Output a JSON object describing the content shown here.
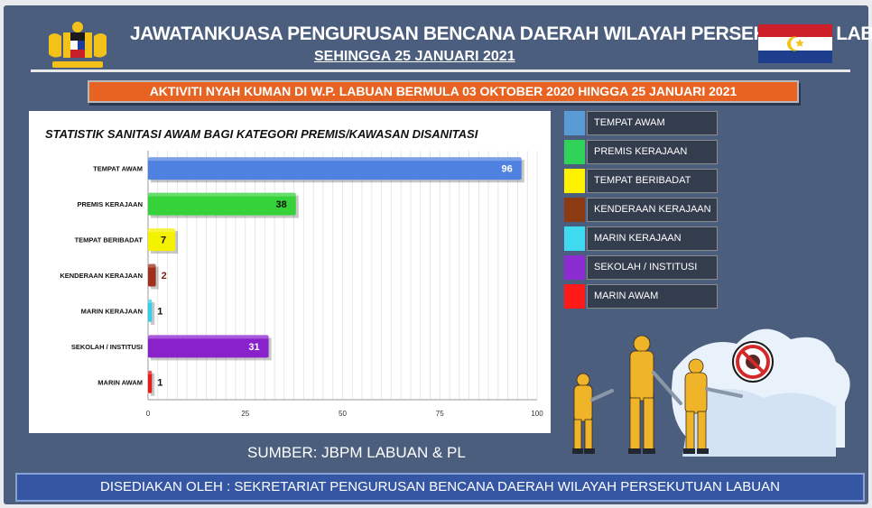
{
  "header": {
    "title": "JAWATANKUASA PENGURUSAN BENCANA DAERAH WILAYAH PERSEKUTUAN  LABUAN",
    "subtitle": "SEHINGGA 25 JANUARI 2021"
  },
  "banner": "AKTIVITI NYAH KUMAN DI W.P. LABUAN BERMULA 03 OKTOBER 2020 HINGGA 25 JANUARI 2021",
  "source": "SUMBER: JBPM LABUAN & PL",
  "footer": "DISEDIAKAN OLEH : SEKRETARIAT PENGURUSAN BENCANA DAERAH WILAYAH PERSEKUTUAN LABUAN",
  "colors": {
    "panel": "#4b5e7e",
    "banner": "#e86321",
    "footer": "#3557a3"
  },
  "icons": [
    "malaysia-coat-of-arms-emblem",
    "labuan-flag",
    "disinfection-workers-illustration",
    "no-virus-sign-icon"
  ],
  "chart_data": {
    "type": "bar",
    "orientation": "horizontal",
    "title": "STATISTIK SANITASI AWAM BAGI KATEGORI PREMIS/KAWASAN DISANITASI",
    "categories": [
      "TEMPAT AWAM",
      "PREMIS KERAJAAN",
      "TEMPAT BERIBADAT",
      "KENDERAAN KERAJAAN",
      "MARIN KERAJAAN",
      "SEKOLAH / INSTITUSI",
      "MARIN AWAM"
    ],
    "values": [
      96,
      38,
      7,
      2,
      1,
      31,
      1
    ],
    "colors": [
      "#4f81e0",
      "#36d23a",
      "#f5f200",
      "#a0301c",
      "#33cfe8",
      "#8a22cc",
      "#e81a1a"
    ],
    "value_label_colors": [
      "#ffffff",
      "#111111",
      "#111111",
      "#7a1f12",
      "#111111",
      "#ffffff",
      "#111111"
    ],
    "xlim": [
      0,
      100
    ],
    "xticks": [
      0,
      25,
      50,
      75,
      100
    ],
    "xlabel": "",
    "ylabel": "",
    "grid": true,
    "legend_placement": "right"
  },
  "legend": [
    {
      "label": "TEMPAT AWAM",
      "color": "#5b9bd5"
    },
    {
      "label": "PREMIS KERAJAAN",
      "color": "#2fd35a"
    },
    {
      "label": "TEMPAT BERIBADAT",
      "color": "#fff200"
    },
    {
      "label": "KENDERAAN KERAJAAN",
      "color": "#8b3a12"
    },
    {
      "label": "MARIN KERAJAAN",
      "color": "#3fd9f0"
    },
    {
      "label": "SEKOLAH / INSTITUSI",
      "color": "#8a2ccf"
    },
    {
      "label": "MARIN AWAM",
      "color": "#ff1a1a"
    }
  ]
}
